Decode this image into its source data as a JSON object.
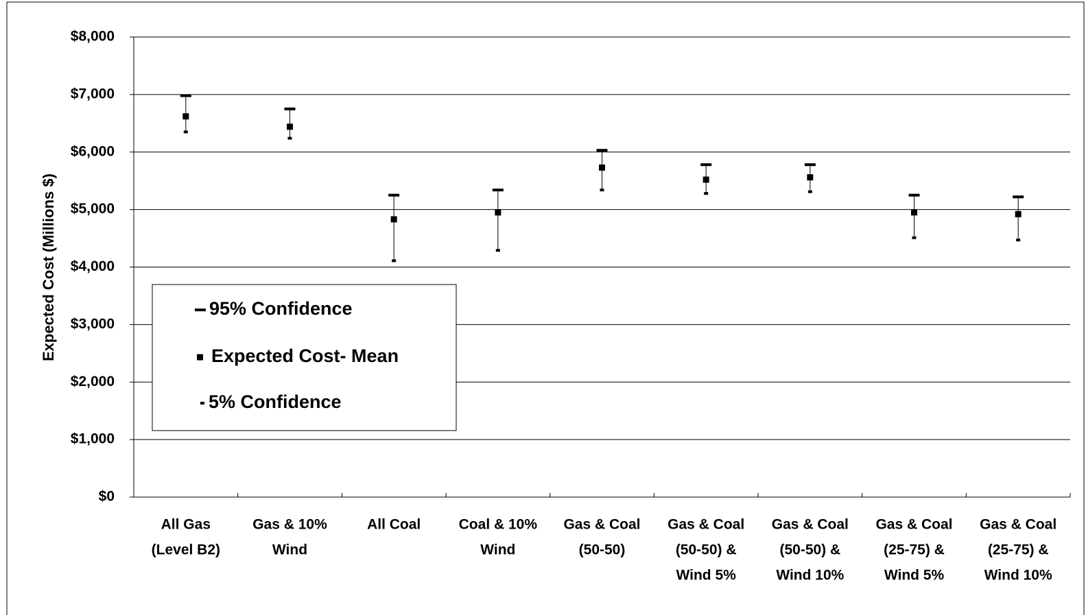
{
  "chart_data": {
    "type": "errorbar",
    "y_label": "Expected Cost (Millions $)",
    "categories": [
      [
        "All Gas",
        "(Level B2)"
      ],
      [
        "Gas & 10%",
        "Wind"
      ],
      [
        "All Coal"
      ],
      [
        "Coal & 10%",
        "Wind"
      ],
      [
        "Gas & Coal",
        "(50-50)"
      ],
      [
        "Gas & Coal",
        "(50-50) &",
        "Wind 5%"
      ],
      [
        "Gas & Coal",
        "(50-50) &",
        "Wind 10%"
      ],
      [
        "Gas & Coal",
        "(25-75) &",
        "Wind 5%"
      ],
      [
        "Gas & Coal",
        "(25-75) &",
        "Wind 10%"
      ]
    ],
    "series": [
      {
        "name": "95% Confidence",
        "color": "#000000",
        "values": [
          6980,
          6750,
          5250,
          5340,
          6030,
          5780,
          5780,
          5250,
          5220
        ]
      },
      {
        "name": "Expected Cost- Mean",
        "color": "#000000",
        "values": [
          6620,
          6440,
          4830,
          4950,
          5730,
          5520,
          5560,
          4950,
          4920
        ]
      },
      {
        "name": "5% Confidence",
        "color": "#000000",
        "values": [
          6350,
          6240,
          4110,
          4290,
          5340,
          5280,
          5310,
          4510,
          4470
        ]
      }
    ],
    "ylim": [
      0,
      8000
    ],
    "yticks": [
      {
        "value": 0,
        "label": "$0"
      },
      {
        "value": 1000,
        "label": "$1,000"
      },
      {
        "value": 2000,
        "label": "$2,000"
      },
      {
        "value": 3000,
        "label": "$3,000"
      },
      {
        "value": 4000,
        "label": "$4,000"
      },
      {
        "value": 5000,
        "label": "$5,000"
      },
      {
        "value": 6000,
        "label": "$6,000"
      },
      {
        "value": 7000,
        "label": "$7,000"
      },
      {
        "value": 8000,
        "label": "$8,000"
      }
    ],
    "grid": true,
    "legend_position": "lower-left"
  }
}
